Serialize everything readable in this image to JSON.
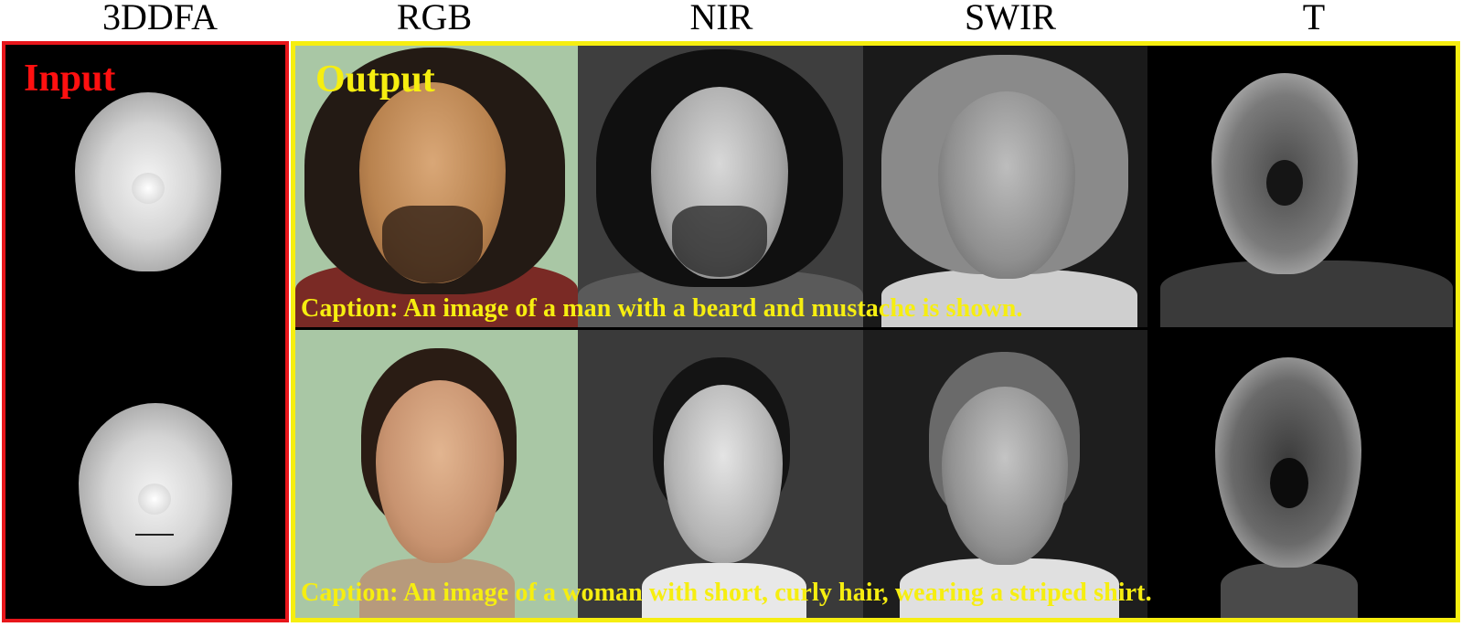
{
  "column_headers": [
    "3DDFA",
    "RGB",
    "NIR",
    "SWIR",
    "T"
  ],
  "input_label": "Input",
  "output_label": "Output",
  "captions": [
    "Caption: An image of a man with a beard and mustache is shown.",
    "Caption: An image of a woman with short, curly hair, wearing a striped shirt."
  ],
  "colors": {
    "input_frame": "#e8161b",
    "input_label": "#ff1010",
    "output_frame": "#f6ee10",
    "caption_text": "#f6ee10"
  },
  "images": {
    "input_row1": "3ddfa-depth-face-man",
    "input_row2": "3ddfa-depth-face-woman",
    "rgb_row1": "rgb-photo-man",
    "nir_row1": "nir-photo-man",
    "swir_row1": "swir-photo-man",
    "thermal_row1": "thermal-photo-man",
    "rgb_row2": "rgb-photo-woman",
    "nir_row2": "nir-photo-woman",
    "swir_row2": "swir-photo-woman",
    "thermal_row2": "thermal-photo-woman"
  }
}
